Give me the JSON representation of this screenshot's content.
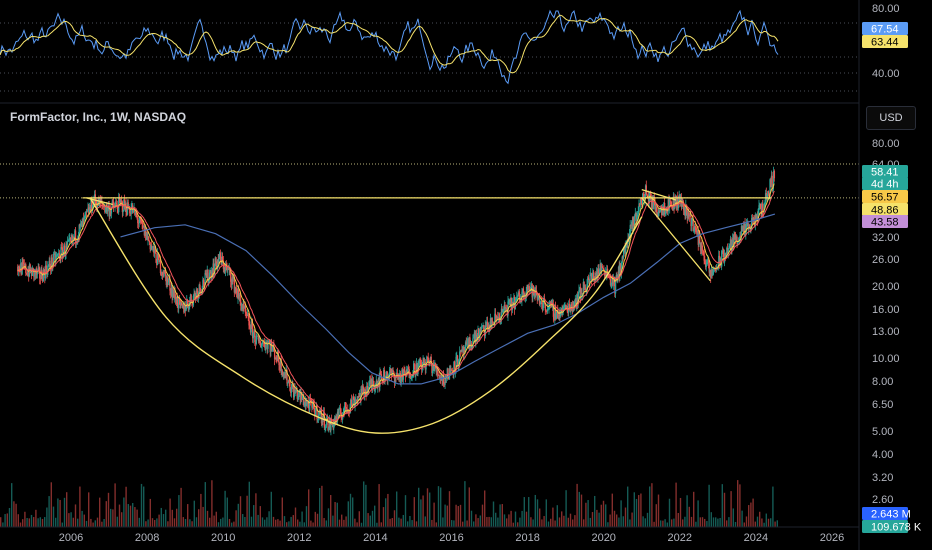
{
  "header": {
    "symbol_title": "FormFactor, Inc., 1W, NASDAQ",
    "currency": "USD"
  },
  "colors": {
    "background": "#000000",
    "rsi": "#5b9cf6",
    "rsi_ma": "#f5e26b",
    "pattern": "#f5e26b",
    "ema_fast": "#f7c948",
    "ema_mid": "#f2545b",
    "sma_long": "#4a6fb5",
    "up": "#26a69a",
    "down": "#ef5350"
  },
  "rsi_panel": {
    "ticks": [
      "80.00",
      "40.00"
    ],
    "badges": [
      {
        "label": "67.54",
        "color": "#5b9cf6"
      },
      {
        "label": "63.44",
        "color": "#f5e26b"
      }
    ]
  },
  "chart_data": {
    "type": "candlestick",
    "x_axis_years": [
      "2006",
      "2008",
      "2010",
      "2012",
      "2014",
      "2016",
      "2018",
      "2020",
      "2022",
      "2024",
      "2026"
    ],
    "y_axis_scale": "log",
    "y_ticks": [
      "80.00",
      "64.00",
      "32.00",
      "26.00",
      "20.00",
      "16.00",
      "13.00",
      "10.00",
      "8.00",
      "6.50",
      "5.00",
      "4.00",
      "3.20",
      "2.60"
    ],
    "price_badges": [
      {
        "label": "58.41",
        "color": "#26a69a"
      },
      {
        "label": "4d 4h",
        "color": "#26a69a"
      },
      {
        "label": "56.57",
        "color": "#f7c948"
      },
      {
        "label": "48.86",
        "color": "#f5e26b"
      },
      {
        "label": "43.58",
        "color": "#c38fd8"
      }
    ],
    "volume_badges": [
      {
        "label": "2.643 M",
        "color": "#2962ff"
      },
      {
        "label": "109.678 K",
        "color": "#26a69a"
      }
    ],
    "price_path": [
      [
        2004.6,
        22
      ],
      [
        2005.2,
        20
      ],
      [
        2005.6,
        24
      ],
      [
        2006.0,
        28
      ],
      [
        2006.3,
        34
      ],
      [
        2006.6,
        44
      ],
      [
        2007.0,
        40
      ],
      [
        2007.3,
        42
      ],
      [
        2007.6,
        40
      ],
      [
        2008.0,
        30
      ],
      [
        2008.3,
        23
      ],
      [
        2008.6,
        18
      ],
      [
        2008.9,
        14
      ],
      [
        2009.2,
        16
      ],
      [
        2009.6,
        20
      ],
      [
        2009.9,
        24
      ],
      [
        2010.2,
        20
      ],
      [
        2010.6,
        13
      ],
      [
        2010.9,
        10
      ],
      [
        2011.2,
        10
      ],
      [
        2011.5,
        8
      ],
      [
        2011.8,
        6.2
      ],
      [
        2012.1,
        5.5
      ],
      [
        2012.5,
        4.8
      ],
      [
        2012.8,
        4.2
      ],
      [
        2013.1,
        4.8
      ],
      [
        2013.5,
        5.6
      ],
      [
        2013.9,
        6.5
      ],
      [
        2014.3,
        7.2
      ],
      [
        2014.7,
        7.0
      ],
      [
        2015.0,
        7.6
      ],
      [
        2015.4,
        8.2
      ],
      [
        2015.8,
        6.8
      ],
      [
        2016.2,
        8.5
      ],
      [
        2016.6,
        10.5
      ],
      [
        2017.0,
        12
      ],
      [
        2017.4,
        14
      ],
      [
        2017.8,
        16
      ],
      [
        2018.0,
        18
      ],
      [
        2018.4,
        15
      ],
      [
        2018.8,
        13.5
      ],
      [
        2019.2,
        15
      ],
      [
        2019.6,
        19
      ],
      [
        2020.0,
        22
      ],
      [
        2020.3,
        18
      ],
      [
        2020.6,
        28
      ],
      [
        2020.9,
        40
      ],
      [
        2021.1,
        48
      ],
      [
        2021.4,
        40
      ],
      [
        2021.7,
        42
      ],
      [
        2022.0,
        44
      ],
      [
        2022.3,
        36
      ],
      [
        2022.6,
        26
      ],
      [
        2022.8,
        20
      ],
      [
        2023.1,
        24
      ],
      [
        2023.5,
        30
      ],
      [
        2023.9,
        34
      ],
      [
        2024.2,
        42
      ],
      [
        2024.5,
        58.4
      ]
    ],
    "sma_long": [
      [
        2007.3,
        30
      ],
      [
        2008.2,
        33
      ],
      [
        2009.0,
        34
      ],
      [
        2009.8,
        31
      ],
      [
        2010.6,
        26
      ],
      [
        2011.3,
        20
      ],
      [
        2012.0,
        15
      ],
      [
        2012.7,
        11.5
      ],
      [
        2013.3,
        9
      ],
      [
        2013.9,
        7.3
      ],
      [
        2014.6,
        6.5
      ],
      [
        2015.2,
        6.5
      ],
      [
        2015.9,
        7
      ],
      [
        2016.6,
        8.2
      ],
      [
        2017.3,
        9.5
      ],
      [
        2018.0,
        11
      ],
      [
        2018.7,
        12
      ],
      [
        2019.3,
        13.5
      ],
      [
        2020.0,
        16
      ],
      [
        2020.7,
        18.5
      ],
      [
        2021.4,
        23
      ],
      [
        2022.0,
        28
      ],
      [
        2022.6,
        31
      ],
      [
        2023.2,
        33
      ],
      [
        2023.8,
        35
      ],
      [
        2024.5,
        38
      ]
    ],
    "cup_curve": [
      [
        2006.5,
        45
      ],
      [
        2008.5,
        13
      ],
      [
        2010.5,
        7
      ],
      [
        2012.5,
        4.6
      ],
      [
        2014.0,
        3.9
      ],
      [
        2015.5,
        4.3
      ],
      [
        2017.0,
        6
      ],
      [
        2018.5,
        10
      ],
      [
        2019.8,
        17
      ],
      [
        2021.0,
        37
      ]
    ],
    "trendlines": [
      [
        [
          2006.3,
          45
        ],
        [
          2024.4,
          45
        ]
      ],
      [
        [
          2021.0,
          49
        ],
        [
          2021.9,
          44
        ]
      ],
      [
        [
          2021.0,
          45
        ],
        [
          2022.8,
          19
        ]
      ],
      [
        [
          2006.4,
          45
        ],
        [
          2007.1,
          42
        ]
      ]
    ],
    "dotted_levels": [
      64,
      45
    ]
  }
}
